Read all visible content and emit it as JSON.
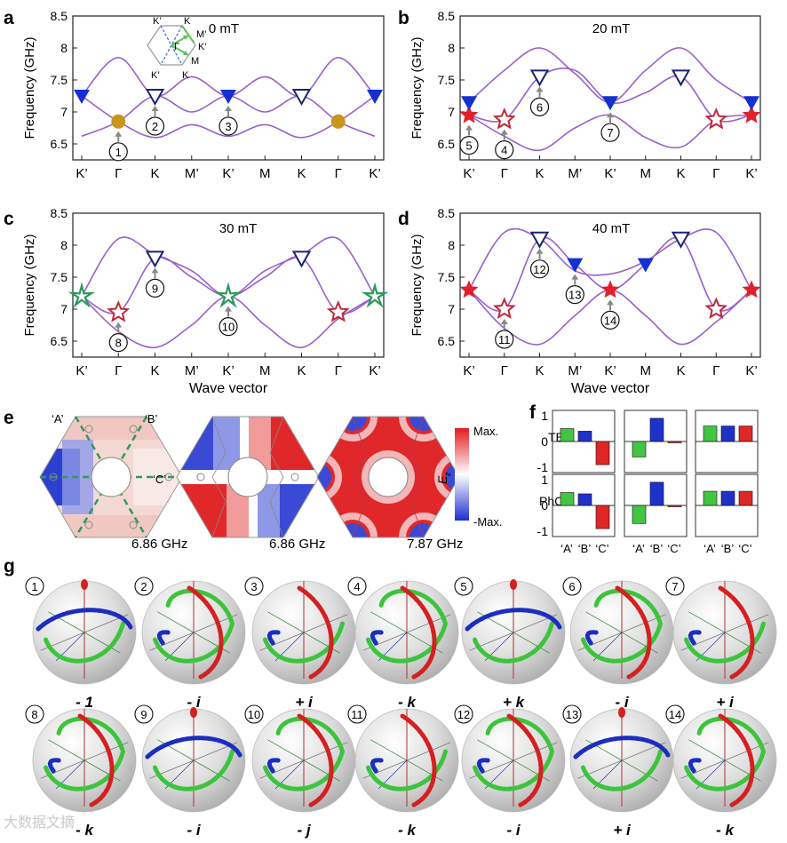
{
  "panels": {
    "a": {
      "letter": "a",
      "field": "0 mT"
    },
    "b": {
      "letter": "b",
      "field": "20 mT"
    },
    "c": {
      "letter": "c",
      "field": "30 mT"
    },
    "d": {
      "letter": "d",
      "field": "40 mT"
    },
    "e": {
      "letter": "e"
    },
    "f": {
      "letter": "f"
    },
    "g": {
      "letter": "g"
    }
  },
  "axes": {
    "ylabel": "Frequency (GHz)",
    "xlabel": "Wave vector",
    "ymin": 6.25,
    "ymax": 8.5,
    "yticks": [
      "8.5",
      "8",
      "7.5",
      "7",
      "6.5"
    ],
    "xticks": [
      "K’",
      "Γ",
      "K",
      "M’",
      "K’",
      "M",
      "K",
      "Γ",
      "K’"
    ]
  },
  "inset_bz": {
    "labels": [
      "K’",
      "K",
      "M’",
      "K’",
      "Γ",
      "M",
      "K’",
      "K"
    ]
  },
  "chart_data": [
    {
      "type": "line",
      "title": "0 mT",
      "xlabel": "",
      "ylabel": "Frequency (GHz)",
      "ylim": [
        6.25,
        8.5
      ],
      "x": [
        0,
        1,
        2,
        3,
        4,
        5,
        6,
        7,
        8
      ],
      "series": [
        {
          "name": "band 1",
          "values": [
            6.62,
            6.85,
            7.25,
            7.0,
            7.25,
            7.0,
            7.25,
            6.85,
            6.62
          ]
        },
        {
          "name": "band 2",
          "values": [
            7.25,
            6.85,
            6.6,
            6.8,
            6.62,
            6.8,
            6.6,
            6.85,
            7.25
          ]
        },
        {
          "name": "band 3",
          "values": [
            7.25,
            7.85,
            7.25,
            7.55,
            7.25,
            7.55,
            7.25,
            7.85,
            7.25
          ]
        }
      ],
      "markers": [
        {
          "label": "1",
          "x": 1,
          "y": 6.85,
          "style": "circle"
        },
        {
          "label": "2",
          "x": 2,
          "y": 7.25,
          "style": "open-triangle"
        },
        {
          "label": "3",
          "x": 4,
          "y": 7.25,
          "style": "filled-triangle"
        }
      ]
    },
    {
      "type": "line",
      "title": "20 mT",
      "ylabel": "Frequency (GHz)",
      "ylim": [
        6.25,
        8.5
      ],
      "x": [
        0,
        1,
        2,
        3,
        4,
        5,
        6,
        7,
        8
      ],
      "series": [
        {
          "name": "band 1",
          "values": [
            6.95,
            6.88,
            7.55,
            7.65,
            7.15,
            7.3,
            7.55,
            6.88,
            6.95
          ]
        },
        {
          "name": "band 2",
          "values": [
            6.95,
            6.62,
            6.4,
            6.75,
            6.95,
            6.6,
            6.45,
            6.88,
            6.95
          ]
        },
        {
          "name": "band 3",
          "values": [
            7.15,
            7.65,
            8.0,
            7.6,
            7.15,
            7.65,
            8.0,
            7.5,
            7.15
          ]
        }
      ],
      "markers": [
        {
          "label": "4",
          "x": 1,
          "y": 6.88,
          "style": "open-star"
        },
        {
          "label": "5",
          "x": 0,
          "y": 6.95,
          "style": "filled-star"
        },
        {
          "label": "6",
          "x": 2,
          "y": 7.55,
          "style": "open-triangle"
        },
        {
          "label": "7",
          "x": 4,
          "y": 7.15,
          "style": "filled-triangle"
        }
      ]
    },
    {
      "type": "line",
      "title": "30 mT",
      "ylabel": "Frequency (GHz)",
      "xlabel": "Wave vector",
      "ylim": [
        6.25,
        8.5
      ],
      "x": [
        0,
        1,
        2,
        3,
        4,
        5,
        6,
        7,
        8
      ],
      "series": [
        {
          "name": "band 1",
          "values": [
            7.2,
            6.95,
            7.8,
            7.5,
            7.2,
            7.5,
            7.8,
            6.95,
            7.2
          ]
        },
        {
          "name": "band 2",
          "values": [
            7.2,
            6.65,
            6.4,
            6.75,
            7.2,
            6.75,
            6.4,
            6.85,
            7.2
          ]
        },
        {
          "name": "band 3",
          "values": [
            7.2,
            8.1,
            7.85,
            7.6,
            7.2,
            7.6,
            7.85,
            8.1,
            7.2
          ]
        }
      ],
      "markers": [
        {
          "label": "8",
          "x": 1,
          "y": 6.95,
          "style": "open-star"
        },
        {
          "label": "9",
          "x": 2,
          "y": 7.8,
          "style": "open-triangle"
        },
        {
          "label": "10",
          "x": 4,
          "y": 7.2,
          "style": "green-star"
        }
      ]
    },
    {
      "type": "line",
      "title": "40 mT",
      "ylabel": "Frequency (GHz)",
      "xlabel": "Wave vector",
      "ylim": [
        6.25,
        8.5
      ],
      "x": [
        0,
        1,
        2,
        3,
        4,
        5,
        6,
        7,
        8
      ],
      "series": [
        {
          "name": "band 1",
          "values": [
            7.3,
            7.0,
            8.1,
            7.7,
            7.3,
            7.7,
            8.1,
            7.0,
            7.3
          ]
        },
        {
          "name": "band 2",
          "values": [
            7.3,
            6.7,
            6.45,
            6.9,
            7.3,
            6.9,
            6.45,
            6.8,
            7.3
          ]
        },
        {
          "name": "band 3",
          "values": [
            7.3,
            8.2,
            8.1,
            7.6,
            7.55,
            7.75,
            8.1,
            8.2,
            7.3
          ]
        }
      ],
      "markers": [
        {
          "label": "11",
          "x": 1,
          "y": 7.0,
          "style": "open-star"
        },
        {
          "label": "12",
          "x": 2,
          "y": 8.1,
          "style": "open-triangle"
        },
        {
          "label": "13",
          "x": 3,
          "y": 7.7,
          "style": "filled-triangle"
        },
        {
          "label": "14",
          "x": 4,
          "y": 7.3,
          "style": "filled-star"
        }
      ]
    },
    {
      "type": "bar",
      "title": "TB",
      "ylim": [
        -1,
        1
      ],
      "categories": [
        "‘A’",
        "‘B’",
        "‘C’"
      ],
      "groups": [
        {
          "values": [
            0.5,
            0.4,
            -0.9
          ]
        },
        {
          "values": [
            -0.6,
            0.9,
            -0.05
          ]
        },
        {
          "values": [
            0.6,
            0.6,
            0.6
          ]
        }
      ]
    },
    {
      "type": "bar",
      "title": "PhC",
      "ylim": [
        -1,
        1
      ],
      "categories": [
        "‘A’",
        "‘B’",
        "‘C’"
      ],
      "groups": [
        {
          "values": [
            0.5,
            0.45,
            -0.9
          ]
        },
        {
          "values": [
            -0.7,
            0.9,
            -0.05
          ]
        },
        {
          "values": [
            0.55,
            0.55,
            0.55
          ]
        }
      ]
    }
  ],
  "field_maps": {
    "sublattice_labels": [
      "‘A’",
      "‘B’",
      "‘C’"
    ],
    "frequencies": [
      "6.86 GHz",
      "6.86 GHz",
      "7.87 GHz"
    ],
    "colorbar": {
      "max": "Max.",
      "min": "-Max.",
      "quantity": "E",
      "subscript": "z"
    }
  },
  "bars_panel": {
    "row_labels": [
      "TB:",
      "PhC:"
    ],
    "yticks": [
      "1",
      "0",
      "-1"
    ],
    "categories": [
      "‘A’",
      "‘B’",
      "‘C’"
    ],
    "colors": [
      "#43c443",
      "#1f31c8",
      "#e02626"
    ]
  },
  "spheres": [
    {
      "num": "1",
      "label": "- 1"
    },
    {
      "num": "2",
      "label": "- i"
    },
    {
      "num": "3",
      "label": "+ i"
    },
    {
      "num": "4",
      "label": "- k"
    },
    {
      "num": "5",
      "label": "+ k"
    },
    {
      "num": "6",
      "label": "- i"
    },
    {
      "num": "7",
      "label": "+ i"
    },
    {
      "num": "8",
      "label": "- k"
    },
    {
      "num": "9",
      "label": "- i"
    },
    {
      "num": "10",
      "label": "- j"
    },
    {
      "num": "11",
      "label": "- k"
    },
    {
      "num": "12",
      "label": "- i"
    },
    {
      "num": "13",
      "label": "+ i"
    },
    {
      "num": "14",
      "label": "- k"
    }
  ],
  "watermark": "大数据文摘"
}
